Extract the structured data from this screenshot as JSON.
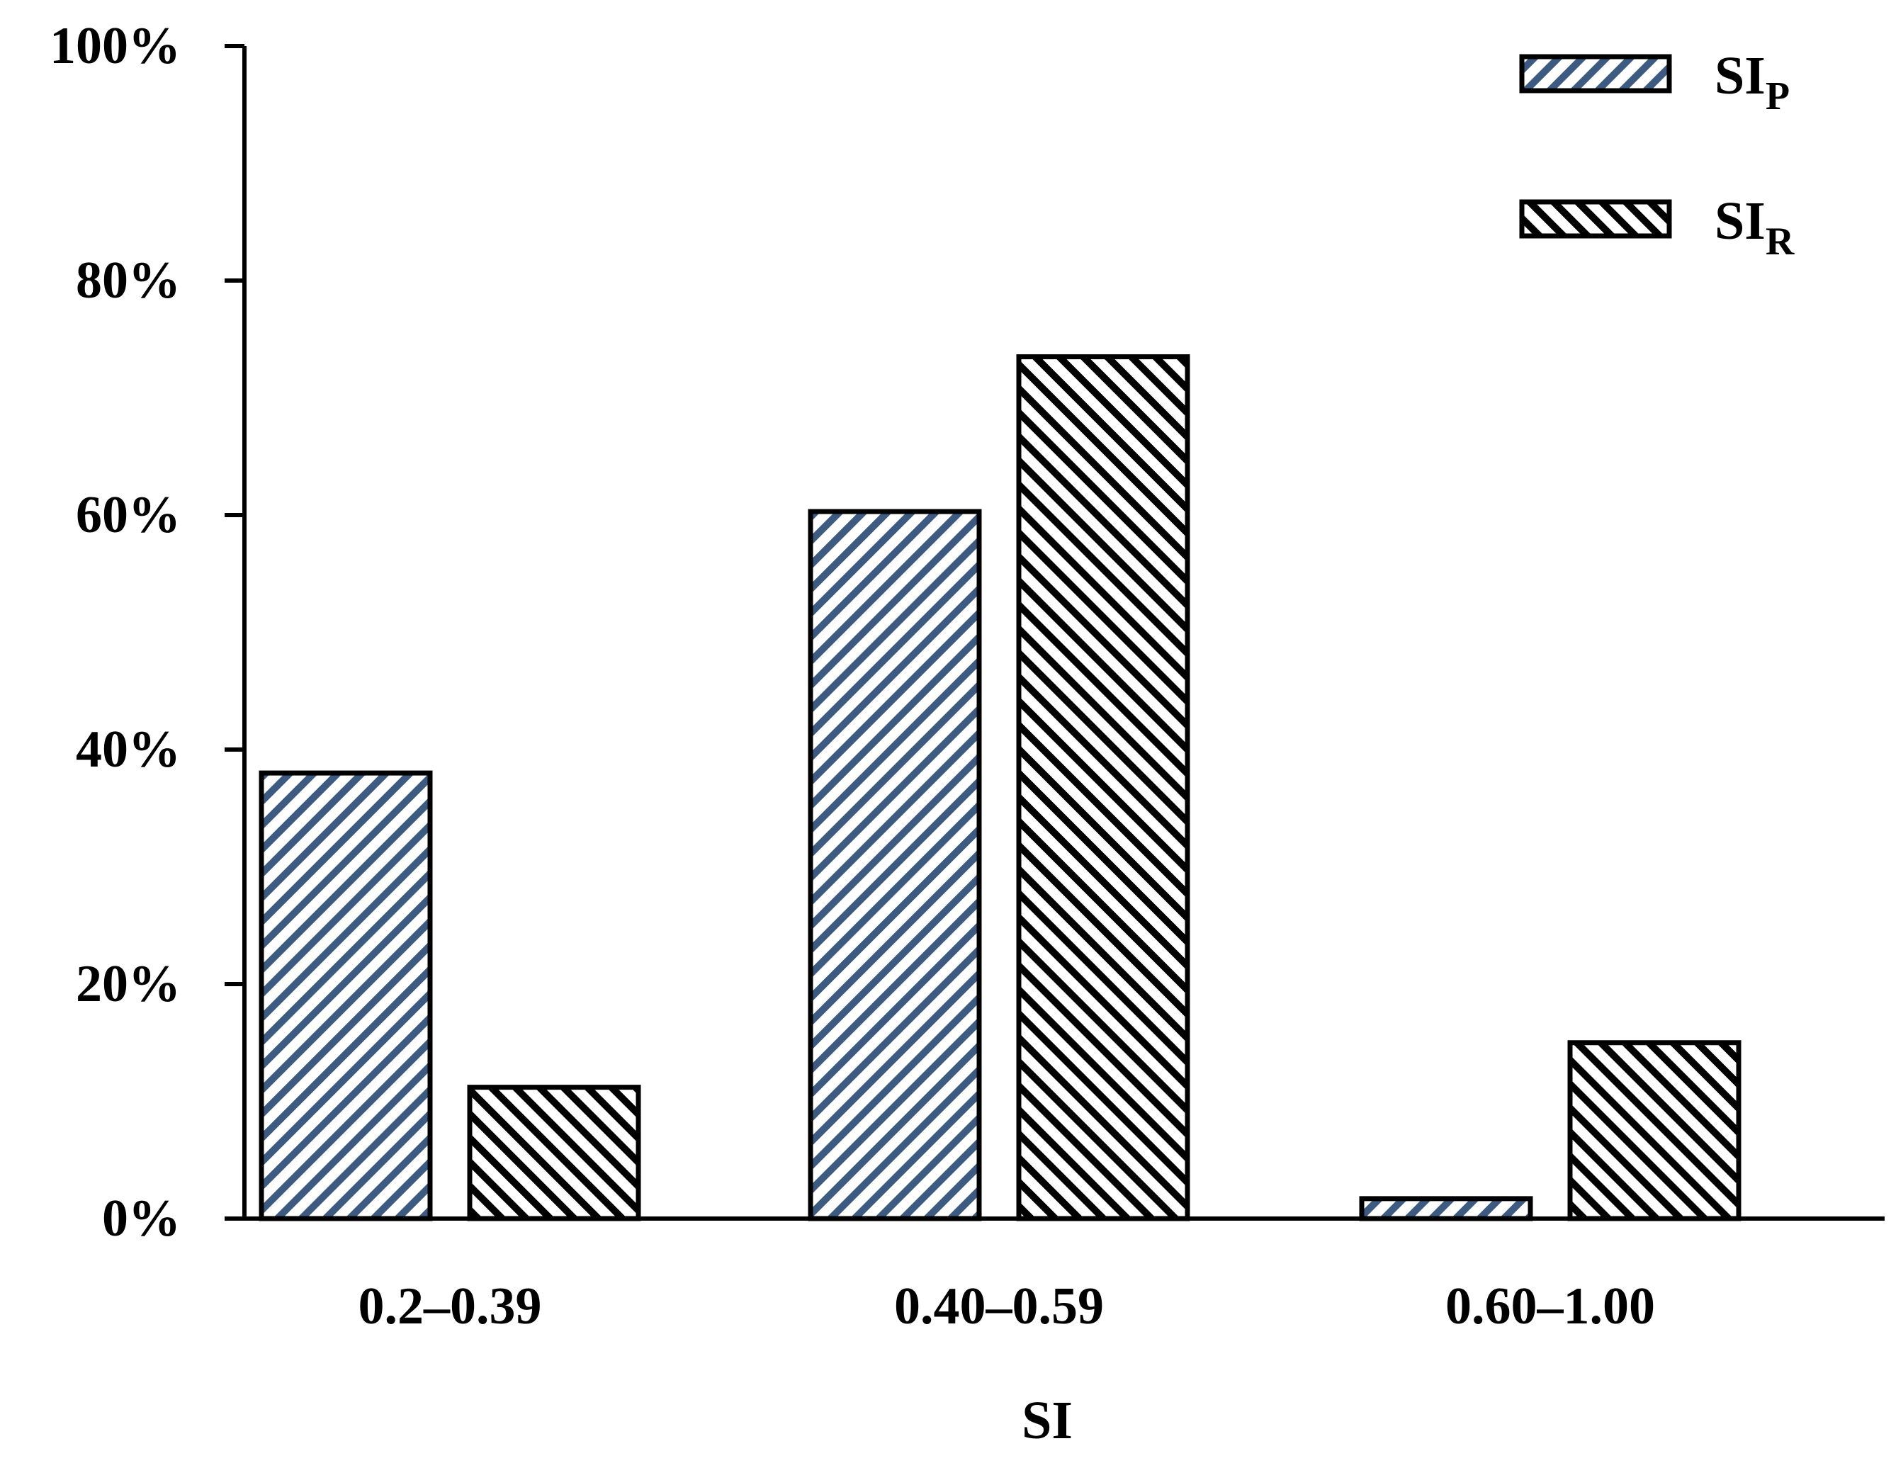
{
  "chart_data": {
    "type": "bar",
    "categories": [
      "0.2–0.39",
      "0.40–0.59",
      "0.60–1.00"
    ],
    "series": [
      {
        "name": "SIP",
        "name_main": "SI",
        "name_sub": "P",
        "values": [
          38,
          60.3,
          1.7
        ],
        "pattern": "hatch-p",
        "color": "#3d5a80"
      },
      {
        "name": "SIR",
        "name_main": "SI",
        "name_sub": "R",
        "values": [
          11.2,
          73.5,
          15
        ],
        "pattern": "hatch-r",
        "color": "#000000"
      }
    ],
    "title": "",
    "xlabel": "SI",
    "ylabel": "",
    "ylim": [
      0,
      100
    ],
    "yticks": [
      0,
      20,
      40,
      60,
      80,
      100
    ],
    "ytick_labels": [
      "0%",
      "20%",
      "40%",
      "60%",
      "80%",
      "100%"
    ],
    "grid": false,
    "legend": "top-right"
  }
}
